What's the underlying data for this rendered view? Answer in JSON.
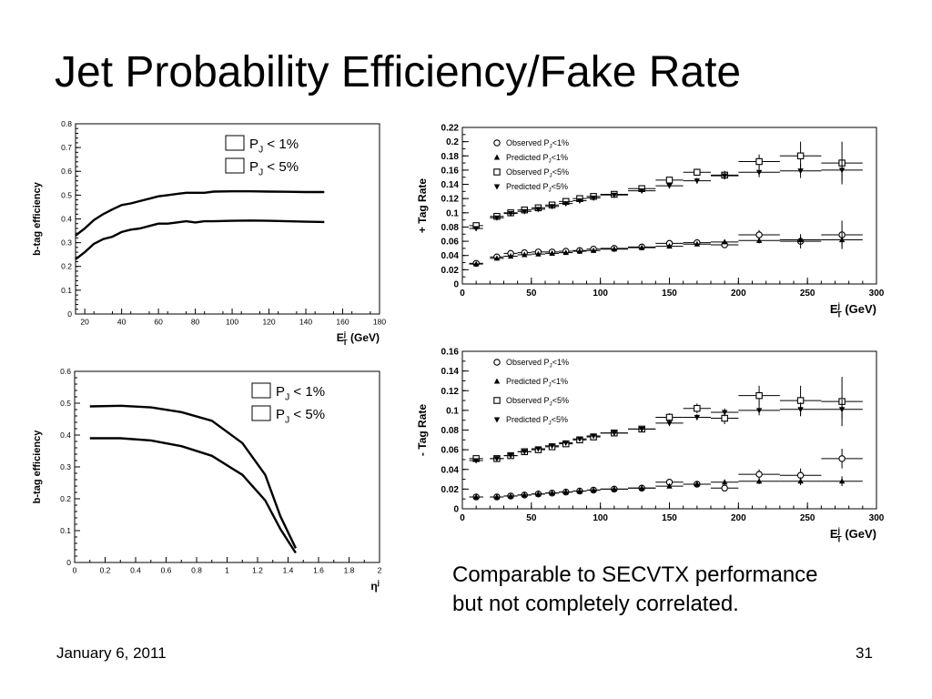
{
  "title": "Jet Probability Efficiency/Fake Rate",
  "caption": "Comparable to SECVTX performance but not completely correlated.",
  "footer": {
    "date": "January 6, 2011",
    "page": "31"
  },
  "chart_data": [
    {
      "type": "line",
      "ylabel": "b-tag efficiency",
      "xlabel": "E_T^j (GeV)",
      "xlim": [
        15,
        180
      ],
      "ylim": [
        0,
        0.8
      ],
      "xticks": [
        20,
        40,
        60,
        80,
        100,
        120,
        140,
        160,
        180
      ],
      "yticks": [
        0,
        0.1,
        0.2,
        0.3,
        0.4,
        0.5,
        0.6,
        0.7,
        0.8
      ],
      "legend": [
        "P_J < 1%",
        "P_J < 5%"
      ],
      "series": [
        {
          "name": "P_J < 1%",
          "x": [
            15,
            20,
            25,
            30,
            35,
            40,
            45,
            50,
            55,
            60,
            65,
            70,
            75,
            80,
            85,
            90,
            100,
            110,
            120,
            130,
            140,
            150
          ],
          "y": [
            0.23,
            0.26,
            0.295,
            0.315,
            0.325,
            0.345,
            0.355,
            0.36,
            0.37,
            0.38,
            0.38,
            0.385,
            0.39,
            0.385,
            0.39,
            0.39,
            0.392,
            0.393,
            0.392,
            0.39,
            0.388,
            0.387
          ]
        },
        {
          "name": "P_J < 5%",
          "x": [
            15,
            20,
            25,
            30,
            35,
            40,
            45,
            50,
            55,
            60,
            65,
            70,
            75,
            80,
            85,
            90,
            100,
            110,
            120,
            130,
            140,
            150
          ],
          "y": [
            0.33,
            0.36,
            0.395,
            0.42,
            0.44,
            0.458,
            0.465,
            0.475,
            0.485,
            0.495,
            0.5,
            0.505,
            0.51,
            0.51,
            0.51,
            0.515,
            0.516,
            0.516,
            0.515,
            0.514,
            0.513,
            0.513
          ]
        }
      ]
    },
    {
      "type": "line",
      "ylabel": "b-tag efficiency",
      "xlabel": "η^j",
      "xlim": [
        0,
        2
      ],
      "ylim": [
        0,
        0.6
      ],
      "xticks": [
        0,
        0.2,
        0.4,
        0.6,
        0.8,
        1,
        1.2,
        1.4,
        1.6,
        1.8,
        2
      ],
      "yticks": [
        0,
        0.1,
        0.2,
        0.3,
        0.4,
        0.5,
        0.6
      ],
      "legend": [
        "P_J < 1%",
        "P_J < 5%"
      ],
      "series": [
        {
          "name": "P_J < 1%",
          "x": [
            0.1,
            0.3,
            0.5,
            0.7,
            0.9,
            1.1,
            1.25,
            1.35,
            1.45
          ],
          "y": [
            0.39,
            0.39,
            0.383,
            0.365,
            0.335,
            0.275,
            0.195,
            0.105,
            0.03
          ]
        },
        {
          "name": "P_J < 5%",
          "x": [
            0.1,
            0.3,
            0.5,
            0.7,
            0.9,
            1.1,
            1.25,
            1.35,
            1.45
          ],
          "y": [
            0.49,
            0.492,
            0.487,
            0.472,
            0.445,
            0.375,
            0.275,
            0.145,
            0.045
          ]
        }
      ]
    },
    {
      "type": "scatter",
      "ylabel": "+ Tag Rate",
      "xlabel": "E_T^j (GeV)",
      "xlim": [
        0,
        300
      ],
      "ylim": [
        0,
        0.22
      ],
      "xticks": [
        0,
        50,
        100,
        150,
        200,
        250,
        300
      ],
      "yticks": [
        0,
        0.02,
        0.04,
        0.06,
        0.08,
        0.1,
        0.12,
        0.14,
        0.16,
        0.18,
        0.2,
        0.22
      ],
      "legend": [
        "Observed P_J<1%",
        "Predicted P_J<1%",
        "Observed P_J<5%",
        "Predicted P_J<5%"
      ],
      "x": [
        10,
        25,
        35,
        45,
        55,
        65,
        75,
        85,
        95,
        110,
        130,
        150,
        170,
        190,
        215,
        245,
        275
      ],
      "xerr": [
        5,
        5,
        5,
        5,
        5,
        5,
        5,
        5,
        5,
        10,
        10,
        10,
        10,
        10,
        15,
        15,
        15
      ],
      "series": [
        {
          "name": "Observed P_J<1%",
          "marker": "open-circle",
          "y": [
            0.029,
            0.038,
            0.043,
            0.044,
            0.045,
            0.045,
            0.046,
            0.047,
            0.049,
            0.05,
            0.052,
            0.057,
            0.058,
            0.055,
            0.069,
            0.06,
            0.069
          ],
          "yerr": [
            0.002,
            0.002,
            0.002,
            0.002,
            0.002,
            0.002,
            0.002,
            0.002,
            0.002,
            0.002,
            0.002,
            0.003,
            0.003,
            0.004,
            0.007,
            0.01,
            0.02
          ]
        },
        {
          "name": "Predicted P_J<1%",
          "marker": "filled-triangle-up",
          "y": [
            0.028,
            0.036,
            0.039,
            0.041,
            0.042,
            0.043,
            0.044,
            0.046,
            0.047,
            0.049,
            0.051,
            0.053,
            0.056,
            0.059,
            0.061,
            0.062,
            0.062
          ],
          "yerr": [
            0.001,
            0.001,
            0.001,
            0.001,
            0.001,
            0.001,
            0.001,
            0.001,
            0.001,
            0.001,
            0.001,
            0.002,
            0.002,
            0.003,
            0.004,
            0.006,
            0.01
          ]
        },
        {
          "name": "Observed P_J<5%",
          "marker": "open-square",
          "y": [
            0.082,
            0.095,
            0.1,
            0.104,
            0.107,
            0.111,
            0.116,
            0.12,
            0.123,
            0.126,
            0.134,
            0.146,
            0.157,
            0.153,
            0.172,
            0.18,
            0.17
          ],
          "yerr": [
            0.003,
            0.003,
            0.003,
            0.003,
            0.003,
            0.003,
            0.003,
            0.003,
            0.003,
            0.003,
            0.004,
            0.004,
            0.005,
            0.006,
            0.01,
            0.02,
            0.03
          ]
        },
        {
          "name": "Predicted P_J<5%",
          "marker": "filled-triangle-down",
          "y": [
            0.078,
            0.093,
            0.099,
            0.102,
            0.105,
            0.109,
            0.113,
            0.117,
            0.121,
            0.125,
            0.131,
            0.138,
            0.145,
            0.152,
            0.157,
            0.159,
            0.16
          ],
          "yerr": [
            0.002,
            0.002,
            0.002,
            0.002,
            0.002,
            0.002,
            0.002,
            0.002,
            0.002,
            0.002,
            0.003,
            0.003,
            0.004,
            0.005,
            0.007,
            0.01,
            0.015
          ]
        }
      ]
    },
    {
      "type": "scatter",
      "ylabel": "- Tag Rate",
      "xlabel": "E_T^j (GeV)",
      "xlim": [
        0,
        300
      ],
      "ylim": [
        0,
        0.16
      ],
      "xticks": [
        0,
        50,
        100,
        150,
        200,
        250,
        300
      ],
      "yticks": [
        0,
        0.02,
        0.04,
        0.06,
        0.08,
        0.1,
        0.12,
        0.14,
        0.16
      ],
      "legend": [
        "Observed P_J<1%",
        "Predicted P_J<1%",
        "Observed P_J<5%",
        "Predicted P_J<5%"
      ],
      "x": [
        10,
        25,
        35,
        45,
        55,
        65,
        75,
        85,
        95,
        110,
        130,
        150,
        170,
        190,
        215,
        245,
        275
      ],
      "xerr": [
        5,
        5,
        5,
        5,
        5,
        5,
        5,
        5,
        5,
        10,
        10,
        10,
        10,
        10,
        15,
        15,
        15
      ],
      "series": [
        {
          "name": "Observed P_J<1%",
          "marker": "open-circle",
          "y": [
            0.012,
            0.012,
            0.013,
            0.014,
            0.015,
            0.016,
            0.017,
            0.018,
            0.019,
            0.02,
            0.021,
            0.027,
            0.025,
            0.021,
            0.035,
            0.034,
            0.051
          ],
          "yerr": [
            0.001,
            0.001,
            0.001,
            0.001,
            0.001,
            0.001,
            0.001,
            0.001,
            0.001,
            0.001,
            0.002,
            0.003,
            0.003,
            0.003,
            0.005,
            0.007,
            0.01
          ]
        },
        {
          "name": "Predicted P_J<1%",
          "marker": "filled-triangle-up",
          "y": [
            0.012,
            0.012,
            0.013,
            0.014,
            0.015,
            0.016,
            0.017,
            0.018,
            0.019,
            0.02,
            0.021,
            0.023,
            0.025,
            0.027,
            0.028,
            0.028,
            0.028
          ],
          "yerr": [
            0.001,
            0.001,
            0.001,
            0.001,
            0.001,
            0.001,
            0.001,
            0.001,
            0.001,
            0.001,
            0.001,
            0.001,
            0.002,
            0.002,
            0.003,
            0.004,
            0.005
          ]
        },
        {
          "name": "Observed P_J<5%",
          "marker": "open-square",
          "y": [
            0.051,
            0.051,
            0.054,
            0.058,
            0.06,
            0.063,
            0.066,
            0.07,
            0.073,
            0.077,
            0.081,
            0.093,
            0.102,
            0.092,
            0.115,
            0.11,
            0.109
          ],
          "yerr": [
            0.002,
            0.002,
            0.002,
            0.002,
            0.002,
            0.002,
            0.002,
            0.002,
            0.003,
            0.003,
            0.003,
            0.004,
            0.005,
            0.006,
            0.01,
            0.015,
            0.025
          ]
        },
        {
          "name": "Predicted P_J<5%",
          "marker": "filled-triangle-down",
          "y": [
            0.049,
            0.051,
            0.054,
            0.058,
            0.061,
            0.064,
            0.067,
            0.071,
            0.074,
            0.077,
            0.081,
            0.087,
            0.093,
            0.098,
            0.1,
            0.101,
            0.101
          ],
          "yerr": [
            0.001,
            0.001,
            0.001,
            0.001,
            0.001,
            0.001,
            0.001,
            0.002,
            0.002,
            0.002,
            0.002,
            0.003,
            0.003,
            0.004,
            0.005,
            0.007,
            0.01
          ]
        }
      ]
    }
  ]
}
